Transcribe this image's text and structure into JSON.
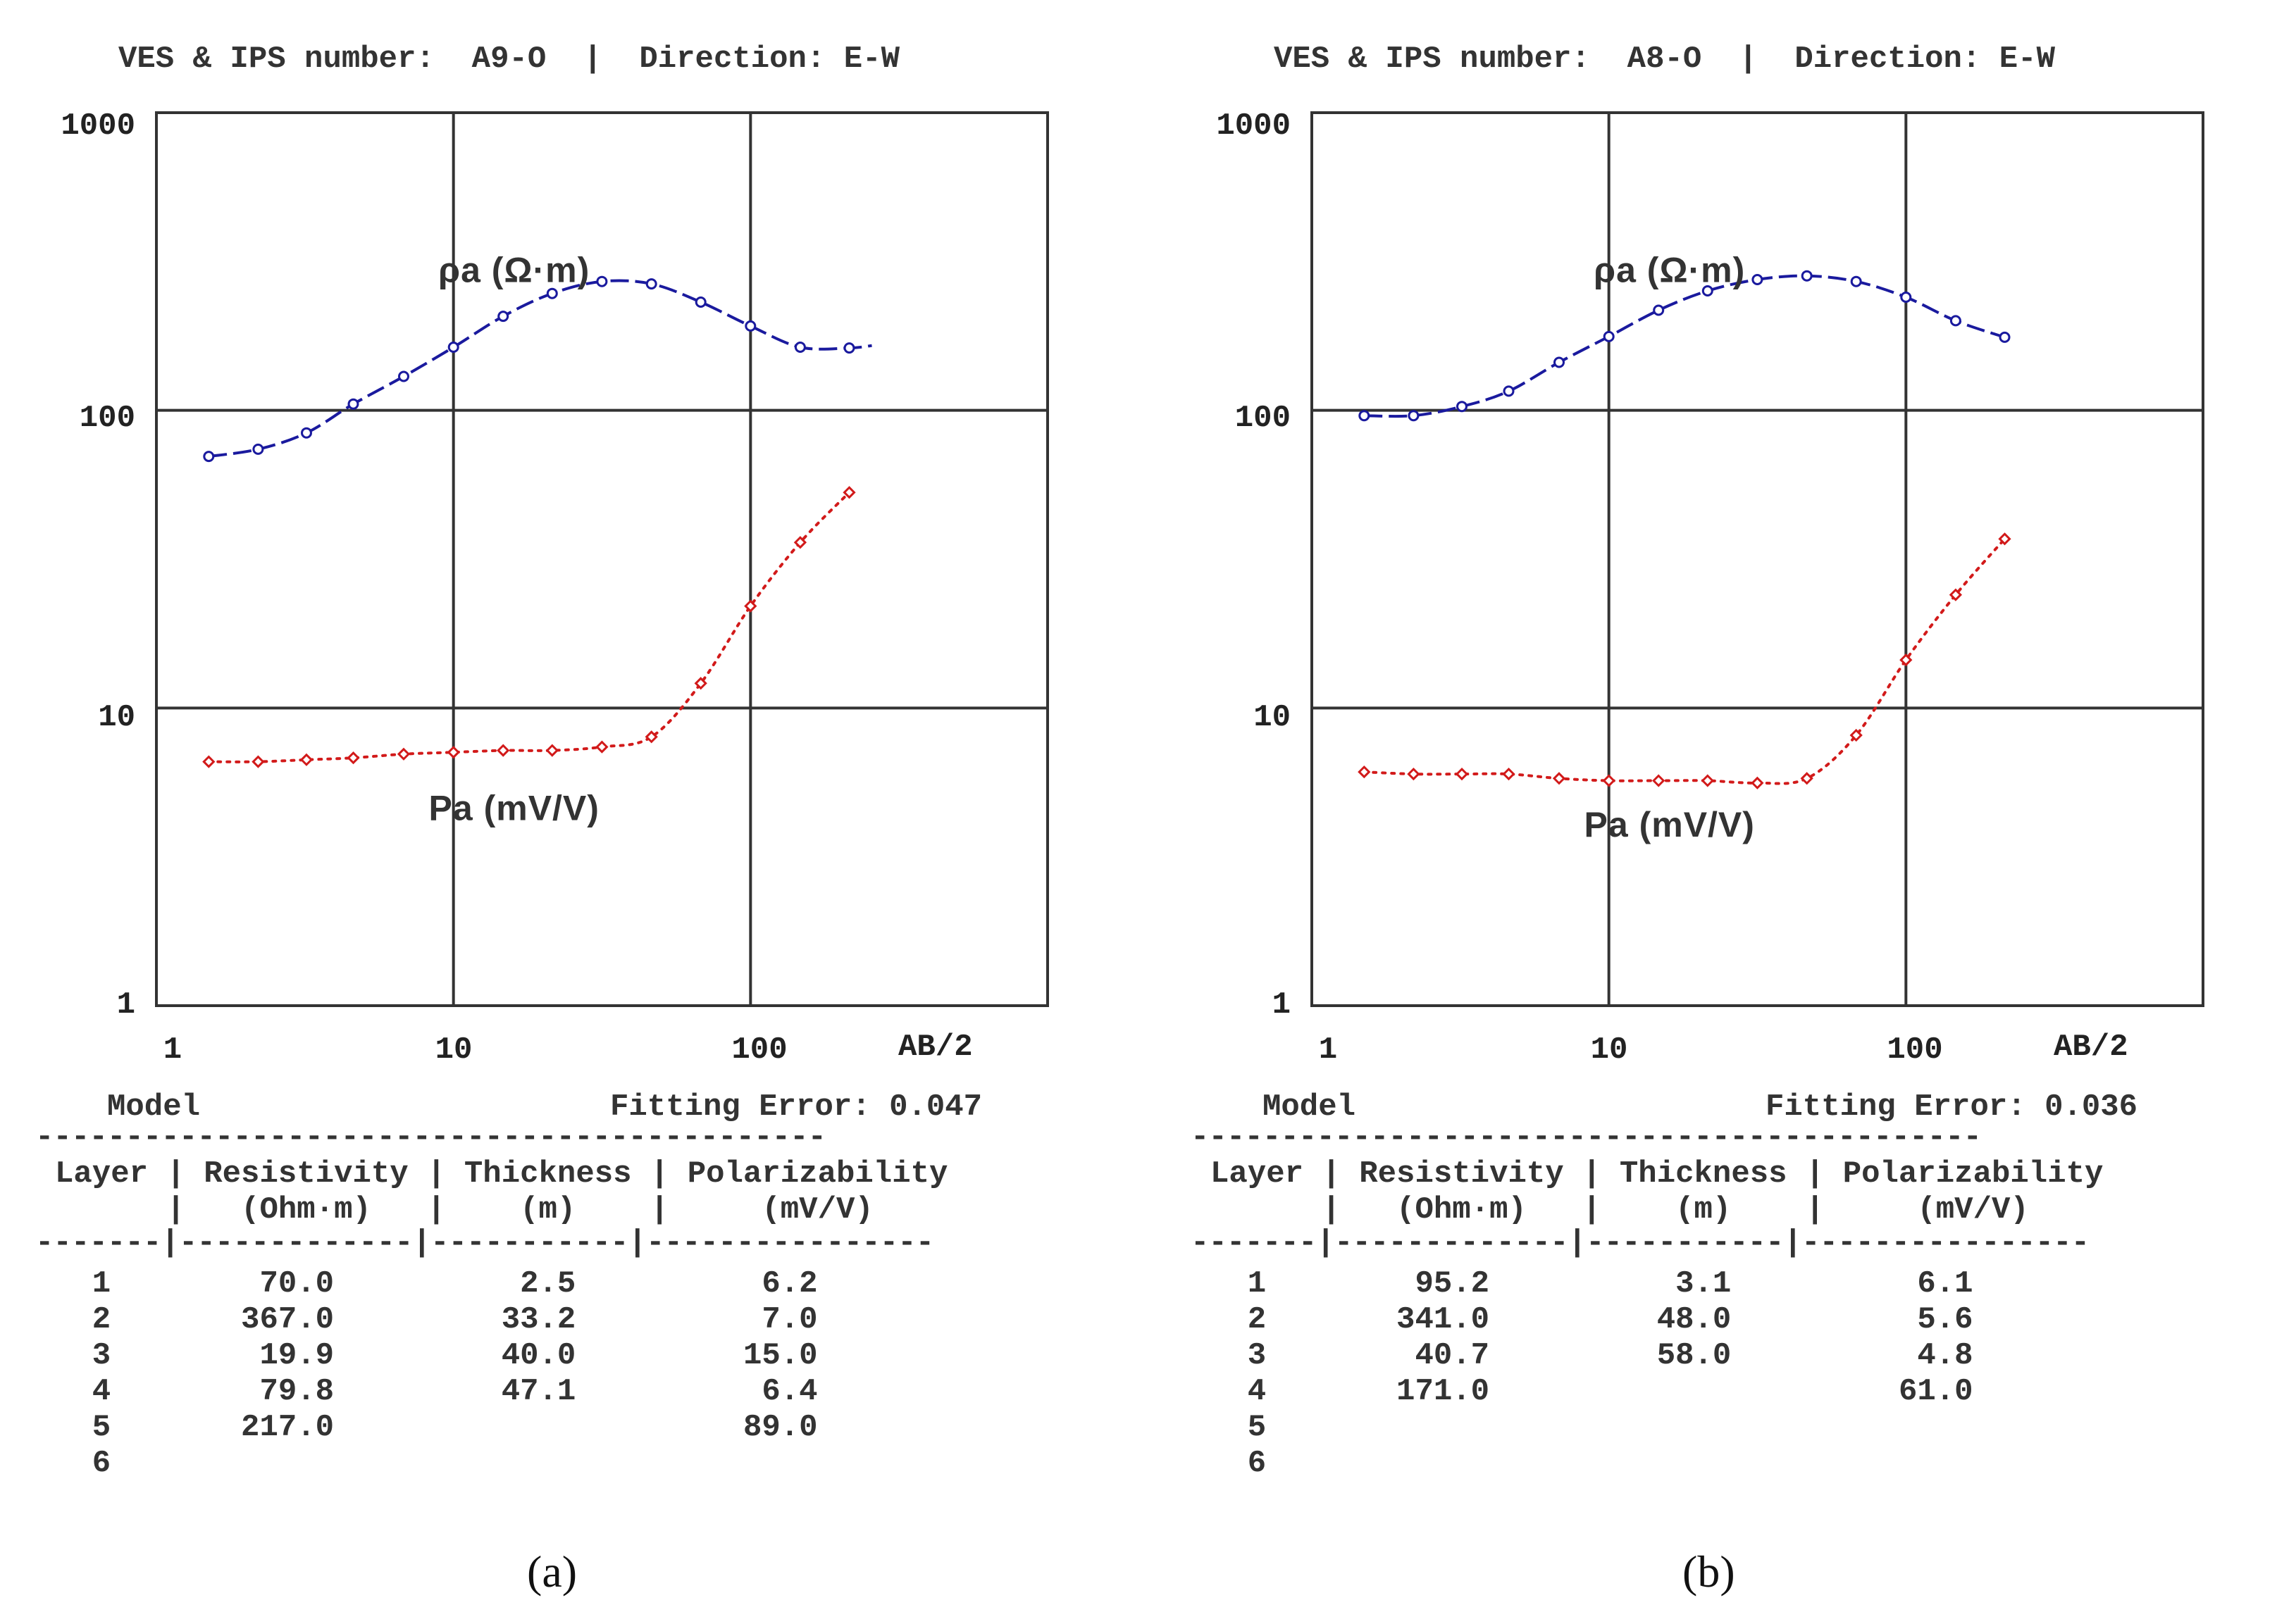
{
  "colors": {
    "rho": "#1a1a9e",
    "pa": "#d21a1a",
    "grid": "#333333"
  },
  "chart_data": [
    {
      "type": "line",
      "title": "VES & IPS number:  A9-O  |  Direction: E-W",
      "xlabel": "AB/2",
      "xscale": "log",
      "yscale": "log",
      "xlim": [
        1,
        1000
      ],
      "ylim": [
        1,
        1000
      ],
      "x_ticks": [
        "1",
        "10",
        "100"
      ],
      "y_ticks": [
        "1000",
        "100",
        "10",
        "1"
      ],
      "series": [
        {
          "name": "ρa (Ω·m)",
          "label_x": 16,
          "label_y": 270,
          "x": [
            1.5,
            2.2,
            3.2,
            4.6,
            6.8,
            10,
            14.7,
            21.5,
            31.6,
            46.4,
            68,
            100,
            147,
            215,
            256
          ],
          "y": [
            70,
            74,
            84,
            105,
            130,
            163,
            207,
            247,
            271,
            266,
            231,
            192,
            163,
            162,
            165
          ]
        },
        {
          "name": "Pa (mV/V)",
          "label_x": 16,
          "label_y": 4.2,
          "x": [
            1.5,
            2.2,
            3.2,
            4.6,
            6.8,
            10,
            14.7,
            21.5,
            31.6,
            46.4,
            68,
            100,
            147,
            215
          ],
          "y": [
            6.6,
            6.6,
            6.7,
            6.8,
            7.0,
            7.1,
            7.2,
            7.2,
            7.4,
            8.0,
            12.1,
            22,
            36,
            53
          ]
        }
      ]
    },
    {
      "type": "line",
      "title": "VES & IPS number:  A8-O  |  Direction: E-W",
      "xlabel": "AB/2",
      "xscale": "log",
      "yscale": "log",
      "xlim": [
        1,
        1000
      ],
      "ylim": [
        1,
        1000
      ],
      "x_ticks": [
        "1",
        "10",
        "100"
      ],
      "y_ticks": [
        "1000",
        "100",
        "10",
        "1"
      ],
      "series": [
        {
          "name": "ρa (Ω·m)",
          "label_x": 16,
          "label_y": 270,
          "x": [
            1.5,
            2.2,
            3.2,
            4.6,
            6.8,
            10,
            14.7,
            21.5,
            31.6,
            46.4,
            68,
            100,
            147,
            215
          ],
          "y": [
            96,
            96,
            103,
            116,
            145,
            177,
            217,
            252,
            275,
            283,
            271,
            240,
            200,
            176
          ]
        },
        {
          "name": "Pa (mV/V)",
          "label_x": 16,
          "label_y": 3.7,
          "x": [
            1.5,
            2.2,
            3.2,
            4.6,
            6.8,
            10,
            14.7,
            21.5,
            31.6,
            46.4,
            68,
            100,
            147,
            215
          ],
          "y": [
            6.1,
            6.0,
            6.0,
            6.0,
            5.8,
            5.7,
            5.7,
            5.7,
            5.6,
            5.8,
            8.1,
            14.5,
            24,
            37
          ]
        }
      ]
    }
  ],
  "models": [
    {
      "model_label": "Model",
      "fitting_error": "Fitting Error: 0.047",
      "dash_line": "--------------------------------------------",
      "header1": "Layer | Resistivity | Thickness | Polarizability",
      "header2": "      |   (Ohm·m)   |    (m)    |     (mV/V)",
      "divider": "-------|-------------|-----------|----------------",
      "rows": [
        "  1        70.0          2.5          6.2",
        "  2       367.0         33.2          7.0",
        "  3        19.9         40.0         15.0",
        "  4        79.8         47.1          6.4",
        "  5       217.0                      89.0",
        "  6"
      ],
      "caption": "(a)"
    },
    {
      "model_label": "Model",
      "fitting_error": "Fitting Error: 0.036",
      "dash_line": "--------------------------------------------",
      "header1": "Layer | Resistivity | Thickness | Polarizability",
      "header2": "      |   (Ohm·m)   |    (m)    |     (mV/V)",
      "divider": "-------|-------------|-----------|----------------",
      "rows": [
        "  1        95.2          3.1          6.1",
        "  2       341.0         48.0          5.6",
        "  3        40.7         58.0          4.8",
        "  4       171.0                      61.0",
        "  5",
        "  6"
      ],
      "caption": "(b)"
    }
  ]
}
